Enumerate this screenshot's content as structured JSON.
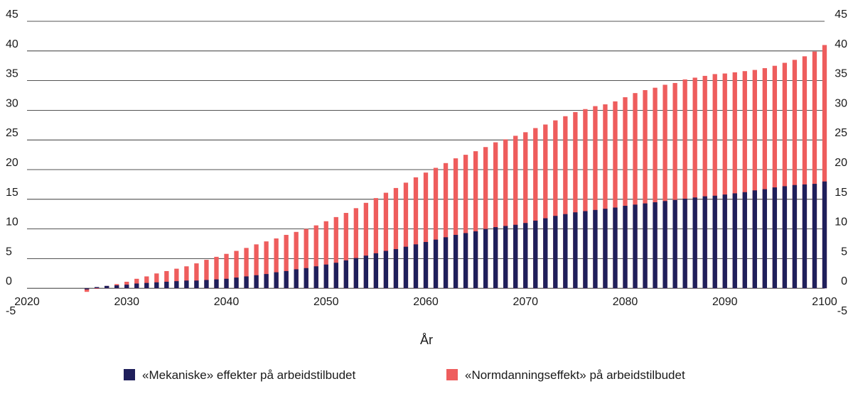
{
  "chart_data": {
    "type": "bar",
    "stacked": true,
    "xlabel": "År",
    "ylabel": "",
    "title": "",
    "xlim": [
      2020,
      2100
    ],
    "ylim": [
      -5,
      45
    ],
    "yticks": [
      45,
      40,
      35,
      30,
      25,
      20,
      15,
      10,
      5,
      0,
      -5
    ],
    "yticks_both_sides": true,
    "xticks": [
      2020,
      2030,
      2040,
      2050,
      2060,
      2070,
      2080,
      2090,
      2100
    ],
    "grid": "horizontal",
    "legend_position": "bottom",
    "x": [
      2026,
      2027,
      2028,
      2029,
      2030,
      2031,
      2032,
      2033,
      2034,
      2035,
      2036,
      2037,
      2038,
      2039,
      2040,
      2041,
      2042,
      2043,
      2044,
      2045,
      2046,
      2047,
      2048,
      2049,
      2050,
      2051,
      2052,
      2053,
      2054,
      2055,
      2056,
      2057,
      2058,
      2059,
      2060,
      2061,
      2062,
      2063,
      2064,
      2065,
      2066,
      2067,
      2068,
      2069,
      2070,
      2071,
      2072,
      2073,
      2074,
      2075,
      2076,
      2077,
      2078,
      2079,
      2080,
      2081,
      2082,
      2083,
      2084,
      2085,
      2086,
      2087,
      2088,
      2089,
      2090,
      2091,
      2092,
      2093,
      2094,
      2095,
      2096,
      2097,
      2098,
      2099,
      2100
    ],
    "series": [
      {
        "name": "«Mekaniske» effekter på arbeidstilbudet",
        "color": "#1f1f5b",
        "values": [
          -0.2,
          0.2,
          0.4,
          0.5,
          0.6,
          0.8,
          0.9,
          1.0,
          1.1,
          1.2,
          1.3,
          1.3,
          1.4,
          1.5,
          1.6,
          1.8,
          2.0,
          2.2,
          2.4,
          2.7,
          2.9,
          3.2,
          3.4,
          3.7,
          4.0,
          4.3,
          4.7,
          5.1,
          5.5,
          5.9,
          6.3,
          6.6,
          7.0,
          7.4,
          7.8,
          8.2,
          8.6,
          9.0,
          9.3,
          9.6,
          10.0,
          10.3,
          10.5,
          10.7,
          11.0,
          11.4,
          11.8,
          12.2,
          12.5,
          12.8,
          13.0,
          13.2,
          13.4,
          13.6,
          13.9,
          14.1,
          14.3,
          14.5,
          14.7,
          14.9,
          15.1,
          15.3,
          15.5,
          15.6,
          15.8,
          16.0,
          16.2,
          16.5,
          16.7,
          17.0,
          17.2,
          17.4,
          17.5,
          17.6,
          18.0
        ]
      },
      {
        "name": "«Normdanningseffekt» på arbeidstilbudet",
        "color": "#ee5d5d",
        "values": [
          -0.4,
          -0.3,
          0.0,
          0.2,
          0.5,
          0.8,
          1.1,
          1.5,
          1.8,
          2.1,
          2.4,
          2.9,
          3.4,
          3.8,
          4.2,
          4.5,
          4.8,
          5.2,
          5.5,
          5.7,
          6.1,
          6.3,
          6.6,
          6.9,
          7.3,
          7.7,
          8.0,
          8.4,
          8.9,
          9.3,
          9.8,
          10.3,
          10.8,
          11.3,
          11.7,
          12.1,
          12.5,
          12.9,
          13.2,
          13.5,
          13.8,
          14.3,
          14.6,
          15.0,
          15.3,
          15.6,
          15.8,
          16.1,
          16.5,
          16.9,
          17.2,
          17.5,
          17.6,
          17.9,
          18.3,
          18.8,
          19.1,
          19.3,
          19.6,
          19.7,
          20.1,
          20.2,
          20.3,
          20.5,
          20.4,
          20.4,
          20.4,
          20.3,
          20.4,
          20.5,
          20.8,
          21.1,
          21.6,
          22.3,
          23.0
        ]
      }
    ]
  }
}
